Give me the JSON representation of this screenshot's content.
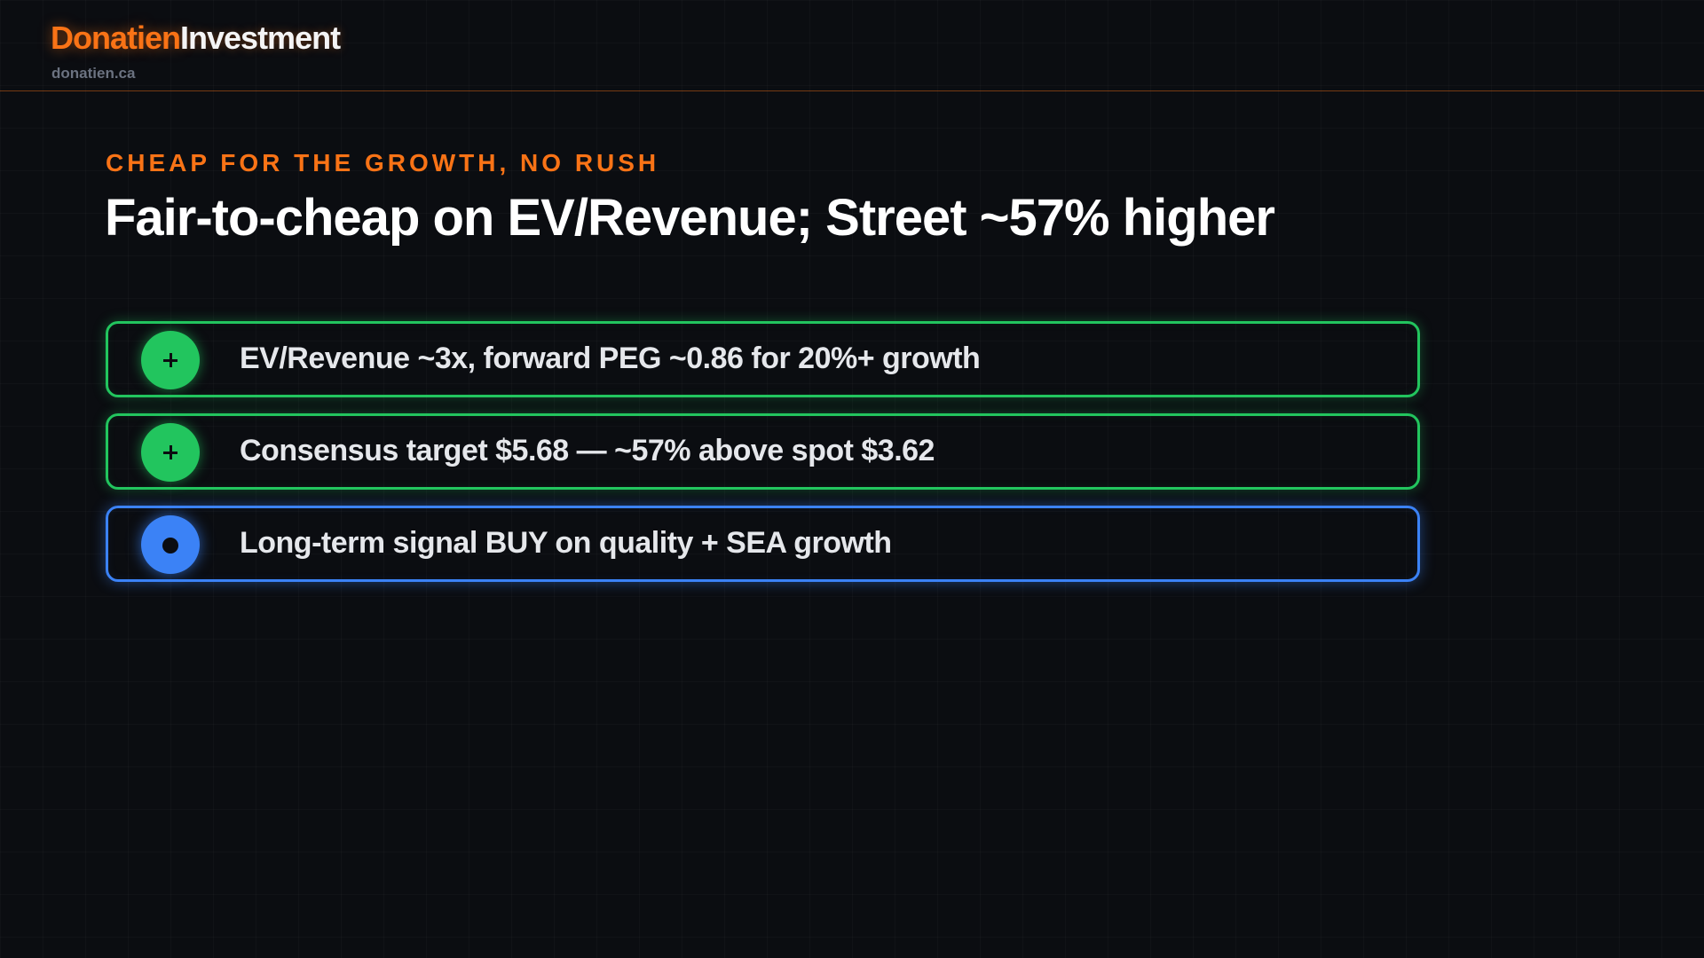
{
  "header": {
    "brand_accent": "Donatien",
    "brand_main": "Investment",
    "site": "donatien.ca"
  },
  "slide": {
    "eyebrow": "CHEAP FOR THE GROWTH, NO RUSH",
    "title": "Fair-to-cheap on EV/Revenue; Street ~57% higher"
  },
  "items": [
    {
      "icon": "plus-icon",
      "status": "positive",
      "text": "EV/Revenue ~3x, forward PEG ~0.86 for 20%+ growth"
    },
    {
      "icon": "plus-icon",
      "status": "positive",
      "text": "Consensus target $5.68 — ~57% above spot $3.62"
    },
    {
      "icon": "dot-icon",
      "status": "neutral",
      "text": "Long-term signal BUY on quality + SEA growth"
    }
  ],
  "colors": {
    "accent": "#f97316",
    "positive": "#22c55e",
    "neutral": "#3b82f6",
    "background": "#0b0d11"
  }
}
